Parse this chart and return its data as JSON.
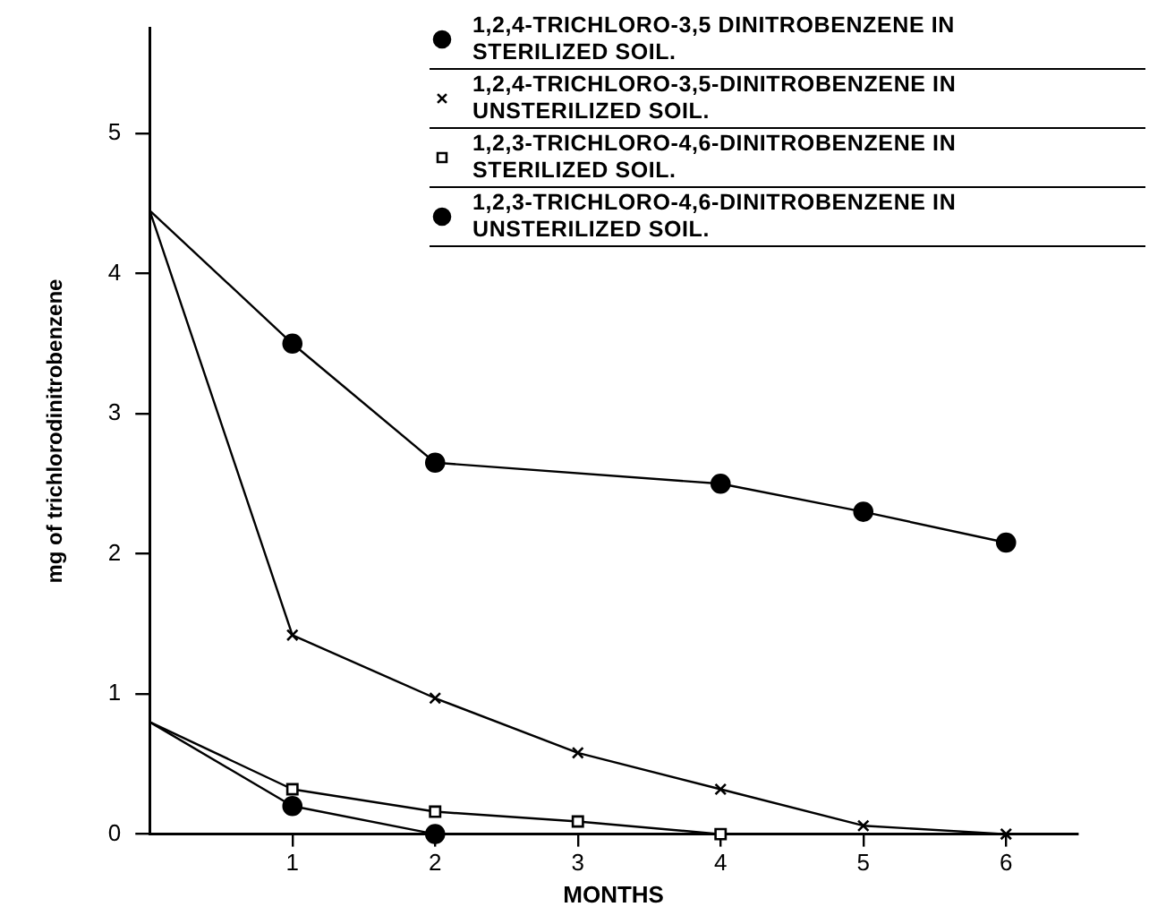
{
  "chart_data": {
    "type": "line",
    "xlabel": "MONTHS",
    "ylabel": "mg of trichlorodinitrobenzene",
    "x": [
      0,
      1,
      2,
      3,
      4,
      5,
      6
    ],
    "xlim": [
      0,
      6.5
    ],
    "xticks": [
      1,
      2,
      3,
      4,
      5,
      6
    ],
    "ylim": [
      0,
      5.75
    ],
    "yticks": [
      0,
      1,
      2,
      3,
      4,
      5
    ],
    "grid": false,
    "legend": "top right",
    "line_style": "solid",
    "series": [
      {
        "name": "1,2,4-TRICHLORO-3,5 DINITROBENZENE IN STERILIZED SOIL.",
        "color": "#000000",
        "marker": "circle",
        "values": [
          4.45,
          3.5,
          2.65,
          null,
          2.5,
          2.3,
          2.08
        ]
      },
      {
        "name": "1,2,4-TRICHLORO-3,5-DINITROBENZENE IN UNSTERILIZED SOIL.",
        "color": "#000000",
        "marker": "cross",
        "values": [
          4.45,
          1.42,
          0.97,
          0.58,
          0.32,
          0.06,
          0
        ]
      },
      {
        "name": "1,2,3-TRICHLORO-4,6-DINITROBENZENE IN STERILIZED SOIL.",
        "color": "#000000",
        "marker": "square",
        "values": [
          0.8,
          0.32,
          0.16,
          0.09,
          0,
          null,
          null
        ]
      },
      {
        "name": "1,2,3-TRICHLORO-4,6-DINITROBENZENE IN UNSTERILIZED SOIL.",
        "color": "#000000",
        "marker": "circle",
        "values": [
          0.8,
          0.2,
          0,
          null,
          null,
          null,
          null
        ]
      }
    ]
  }
}
